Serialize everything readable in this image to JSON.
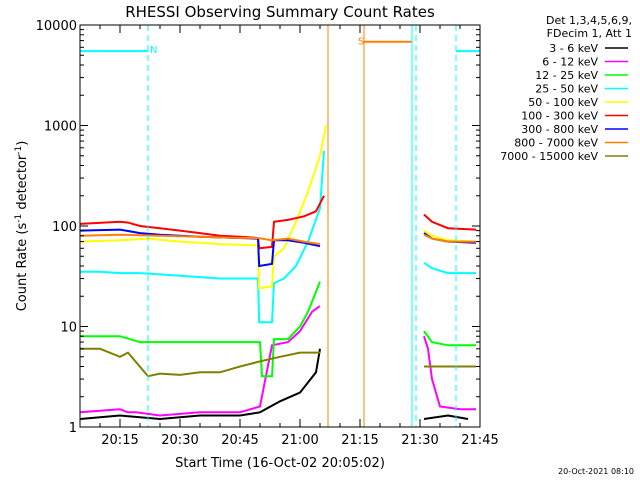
{
  "chart_data": {
    "type": "line",
    "title": "RHESSI Observing Summary Count Rates",
    "xlabel": "Start Time (16-Oct-02 20:05:02)",
    "ylabel_parts": [
      "Count Rate (s",
      "-1",
      " detector",
      "-1",
      ")"
    ],
    "timestamp": "20-Oct-2021 08:10",
    "y_scale": "log",
    "ylim": [
      1,
      10000
    ],
    "xlim_min": [
      0,
      100
    ],
    "x_ticks": [
      {
        "min": 10,
        "label": "20:15"
      },
      {
        "min": 25,
        "label": "20:30"
      },
      {
        "min": 40,
        "label": "20:45"
      },
      {
        "min": 55,
        "label": "21:00"
      },
      {
        "min": 70,
        "label": "21:15"
      },
      {
        "min": 85,
        "label": "21:30"
      },
      {
        "min": 100,
        "label": "21:45"
      }
    ],
    "y_ticks": [
      {
        "value": 1,
        "label": "1"
      },
      {
        "value": 10,
        "label": "10"
      },
      {
        "value": 100,
        "label": "100"
      },
      {
        "value": 1000,
        "label": "1000"
      },
      {
        "value": 10000,
        "label": "10000"
      }
    ],
    "legend_header": [
      "Det 1,3,4,5,6,9,",
      "FDecim 1, Att 1"
    ],
    "series": [
      {
        "name": "3 - 6 keV",
        "color": "#000000",
        "segments": [
          [
            [
              0,
              1.2
            ],
            [
              10,
              1.3
            ],
            [
              20,
              1.2
            ],
            [
              30,
              1.3
            ],
            [
              40,
              1.3
            ],
            [
              45,
              1.4
            ],
            [
              50,
              1.8
            ],
            [
              55,
              2.2
            ],
            [
              59,
              3.5
            ],
            [
              60,
              6
            ]
          ],
          [
            [
              86,
              1.2
            ],
            [
              92,
              1.3
            ],
            [
              97,
              1.2
            ]
          ]
        ]
      },
      {
        "name": "6 - 12 keV",
        "color": "#ff00ff",
        "segments": [
          [
            [
              0,
              1.4
            ],
            [
              10,
              1.5
            ],
            [
              12,
              1.4
            ],
            [
              14,
              1.4
            ],
            [
              20,
              1.3
            ],
            [
              30,
              1.4
            ],
            [
              40,
              1.4
            ],
            [
              45,
              1.6
            ],
            [
              48,
              6.5
            ],
            [
              52,
              7
            ],
            [
              55,
              9
            ],
            [
              58,
              14
            ],
            [
              60,
              16
            ]
          ],
          [
            [
              86,
              8
            ],
            [
              87,
              6
            ],
            [
              88,
              3
            ],
            [
              90,
              1.6
            ],
            [
              95,
              1.5
            ],
            [
              99,
              1.5
            ]
          ]
        ]
      },
      {
        "name": "12 - 25 keV",
        "color": "#00ff00",
        "segments": [
          [
            [
              0,
              8
            ],
            [
              5,
              8
            ],
            [
              10,
              8
            ],
            [
              15,
              7
            ],
            [
              20,
              7
            ],
            [
              25,
              7
            ],
            [
              30,
              7
            ],
            [
              35,
              7
            ],
            [
              40,
              7
            ],
            [
              45,
              7
            ],
            [
              45.5,
              3.2
            ],
            [
              48,
              3.2
            ],
            [
              48.5,
              7.5
            ],
            [
              52,
              7.5
            ],
            [
              55,
              10
            ],
            [
              57,
              14
            ],
            [
              60,
              28
            ]
          ],
          [
            [
              86,
              9
            ],
            [
              88,
              7
            ],
            [
              92,
              6.5
            ],
            [
              99,
              6.5
            ]
          ]
        ]
      },
      {
        "name": "25 - 50 keV",
        "color": "#00ffff",
        "segments": [
          [
            [
              0,
              5500
            ],
            [
              17,
              5500
            ]
          ],
          [
            [
              94,
              5500
            ],
            [
              100,
              5500
            ]
          ],
          [
            [
              0,
              35
            ],
            [
              5,
              35
            ],
            [
              10,
              34
            ],
            [
              15,
              34
            ],
            [
              20,
              33
            ],
            [
              25,
              32
            ],
            [
              30,
              31
            ],
            [
              35,
              30
            ],
            [
              40,
              30
            ],
            [
              44.5,
              30
            ],
            [
              44.8,
              11
            ],
            [
              48,
              11
            ],
            [
              48.5,
              27
            ],
            [
              51,
              30
            ],
            [
              54,
              40
            ],
            [
              57,
              70
            ],
            [
              60,
              150
            ],
            [
              61,
              560
            ]
          ],
          [
            [
              86,
              43
            ],
            [
              88,
              38
            ],
            [
              92,
              34
            ],
            [
              99,
              34
            ]
          ]
        ]
      },
      {
        "name": "50 - 100 keV",
        "color": "#ffff00",
        "segments": [
          [
            [
              0,
              70
            ],
            [
              10,
              72
            ],
            [
              17,
              75
            ],
            [
              25,
              70
            ],
            [
              30,
              68
            ],
            [
              35,
              66
            ],
            [
              40,
              65
            ],
            [
              44.5,
              64
            ],
            [
              44.8,
              24
            ],
            [
              48,
              25
            ],
            [
              48.5,
              50
            ],
            [
              51,
              60
            ],
            [
              54,
              110
            ],
            [
              57,
              220
            ],
            [
              60,
              500
            ],
            [
              61.5,
              1000
            ]
          ],
          [
            [
              86,
              90
            ],
            [
              88,
              80
            ],
            [
              92,
              72
            ],
            [
              99,
              70
            ]
          ]
        ]
      },
      {
        "name": "100 - 300 keV",
        "color": "#ff0000",
        "segments": [
          [
            [
              0,
              105
            ],
            [
              10,
              110
            ],
            [
              12,
              108
            ],
            [
              15,
              100
            ],
            [
              20,
              95
            ],
            [
              25,
              90
            ],
            [
              30,
              85
            ],
            [
              35,
              80
            ],
            [
              40,
              78
            ],
            [
              44.5,
              76
            ],
            [
              44.8,
              60
            ],
            [
              48,
              62
            ],
            [
              48.5,
              110
            ],
            [
              52,
              115
            ],
            [
              56,
              125
            ],
            [
              59,
              140
            ],
            [
              61,
              200
            ]
          ],
          [
            [
              86,
              130
            ],
            [
              88,
              110
            ],
            [
              92,
              95
            ],
            [
              99,
              92
            ]
          ]
        ]
      },
      {
        "name": "300 - 800 keV",
        "color": "#0000ff",
        "segments": [
          [
            [
              0,
              90
            ],
            [
              10,
              92
            ],
            [
              15,
              85
            ],
            [
              20,
              82
            ],
            [
              25,
              80
            ],
            [
              30,
              78
            ],
            [
              35,
              77
            ],
            [
              40,
              76
            ],
            [
              44.5,
              75
            ],
            [
              44.8,
              40
            ],
            [
              48,
              42
            ],
            [
              48.5,
              72
            ],
            [
              52,
              72
            ],
            [
              56,
              68
            ],
            [
              60,
              63
            ]
          ],
          [
            [
              86,
              85
            ],
            [
              88,
              75
            ],
            [
              92,
              70
            ],
            [
              99,
              68
            ]
          ]
        ]
      },
      {
        "name": "800 - 7000 keV",
        "color": "#ff8000",
        "segments": [
          [
            [
              71,
              6800
            ],
            [
              83,
              6800
            ]
          ],
          [
            [
              0,
              80
            ],
            [
              10,
              82
            ],
            [
              20,
              80
            ],
            [
              30,
              78
            ],
            [
              40,
              76
            ],
            [
              44.5,
              76
            ],
            [
              48,
              72
            ],
            [
              52,
              75
            ],
            [
              56,
              70
            ],
            [
              60,
              66
            ]
          ],
          [
            [
              86,
              82
            ],
            [
              88,
              75
            ],
            [
              92,
              70
            ],
            [
              99,
              70
            ]
          ]
        ]
      },
      {
        "name": "7000 - 15000 keV",
        "color": "#808000",
        "segments": [
          [
            [
              0,
              6
            ],
            [
              5,
              6
            ],
            [
              10,
              5
            ],
            [
              12,
              5.5
            ],
            [
              17,
              3.2
            ],
            [
              20,
              3.4
            ],
            [
              25,
              3.3
            ],
            [
              30,
              3.5
            ],
            [
              35,
              3.5
            ],
            [
              40,
              4
            ],
            [
              45,
              4.5
            ],
            [
              50,
              5
            ],
            [
              55,
              5.5
            ],
            [
              60,
              5.5
            ]
          ],
          [
            [
              86,
              4
            ],
            [
              88,
              4
            ],
            [
              92,
              4
            ],
            [
              99,
              4
            ]
          ]
        ]
      }
    ],
    "vlines": [
      {
        "x_min": 0,
        "color": "#00ffff",
        "style": "solid"
      },
      {
        "x_min": 17,
        "color": "#00ffff",
        "style": "dashed"
      },
      {
        "x_min": 62,
        "color": "#ff8000",
        "style": "solid"
      },
      {
        "x_min": 71,
        "color": "#ff8000",
        "style": "solid"
      },
      {
        "x_min": 83,
        "color": "#00ffff",
        "style": "solid"
      },
      {
        "x_min": 84,
        "color": "#00ffff",
        "style": "dashed"
      },
      {
        "x_min": 94,
        "color": "#00ffff",
        "style": "dashed"
      }
    ],
    "annotations": [
      {
        "text": "N",
        "x_min": 17.5,
        "y": 5800,
        "color": "#00ffff"
      },
      {
        "text": "S",
        "x_min": 69.5,
        "y": 7000,
        "color": "#ff8000"
      }
    ]
  }
}
